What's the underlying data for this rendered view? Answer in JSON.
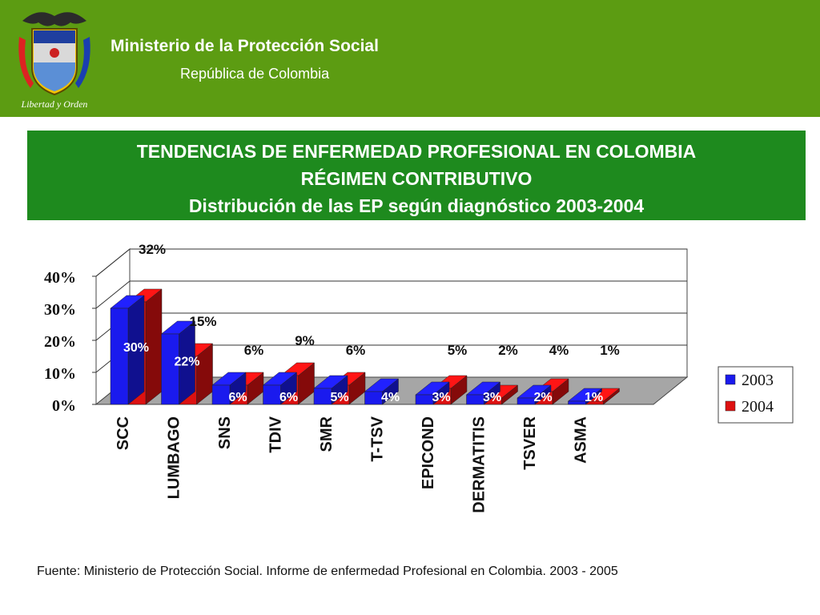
{
  "header": {
    "ministry": "Ministerio de la Protección Social",
    "republic": "República de Colombia",
    "motto": "Libertad y Orden"
  },
  "title": {
    "line1": "TENDENCIAS DE ENFERMEDAD PROFESIONAL EN COLOMBIA",
    "line2": "RÉGIMEN CONTRIBUTIVO",
    "line3": "Distribución de las EP según diagnóstico 2003-2004"
  },
  "chart_data": {
    "type": "bar",
    "title": "",
    "xlabel": "",
    "ylabel": "",
    "categories": [
      "SCC",
      "LUMBAGO",
      "SNS",
      "TDIV",
      "SMR",
      "T-TSV",
      "EPICOND",
      "DERMATITIS",
      "TSVER",
      "ASMA"
    ],
    "series": [
      {
        "name": "2003",
        "values": [
          30,
          22,
          6,
          6,
          5,
          4,
          3,
          3,
          2,
          1
        ],
        "color": "#1a1aee"
      },
      {
        "name": "2004",
        "values": [
          32,
          15,
          6,
          9,
          6,
          0,
          5,
          2,
          4,
          1
        ],
        "color": "#dd1111"
      }
    ],
    "labels_2003": [
      "30%",
      "22%",
      "6%",
      "6%",
      "5%",
      "4%",
      "3%",
      "3%",
      "2%",
      "1%"
    ],
    "labels_2004": [
      "32%",
      "15%",
      "6%",
      "9%",
      "6%",
      "",
      "5%",
      "2%",
      "4%",
      "1%"
    ],
    "yticks": [
      "0%",
      "10%",
      "20%",
      "30%",
      "40%"
    ],
    "ylim": [
      0,
      40
    ],
    "legend_position": "right",
    "grid": true,
    "floor_color": "#a6a6a6"
  },
  "source": "Fuente: Ministerio de Protección Social. Informe de enfermedad Profesional en Colombia. 2003 - 2005"
}
